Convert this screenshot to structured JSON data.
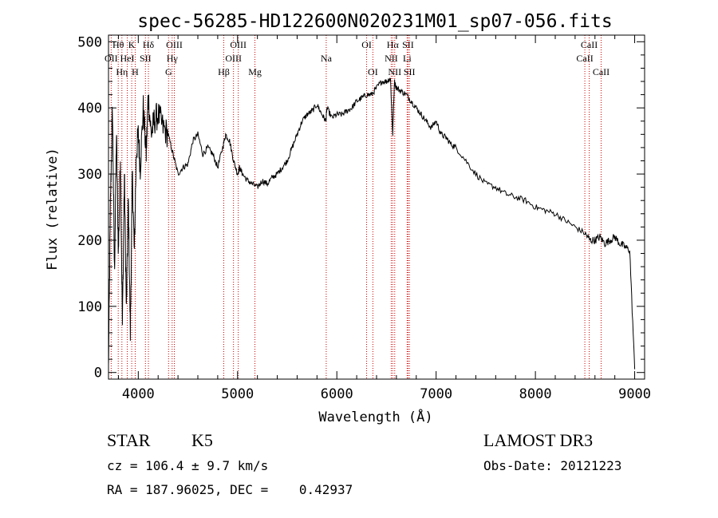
{
  "chart_data": {
    "type": "line",
    "title": "spec-56285-HD122600N020231M01_sp07-056.fits",
    "xlabel": "Wavelength (Å)",
    "ylabel": "Flux (relative)",
    "xlim": [
      3700,
      9100
    ],
    "ylim": [
      -10,
      510
    ],
    "x_ticks": [
      4000,
      5000,
      6000,
      7000,
      8000,
      9000
    ],
    "x_tick_labels": [
      "4000",
      "5000",
      "6000",
      "7000",
      "8000",
      "9000"
    ],
    "y_ticks": [
      0,
      100,
      200,
      300,
      400,
      500
    ],
    "y_tick_labels": [
      "0",
      "100",
      "200",
      "300",
      "400",
      "500"
    ],
    "line_color": "#000000",
    "marker_color": "#cc0000",
    "spectrum": {
      "x": [
        3700,
        3720,
        3740,
        3760,
        3780,
        3800,
        3820,
        3840,
        3860,
        3880,
        3900,
        3920,
        3940,
        3960,
        3980,
        4000,
        4020,
        4050,
        4080,
        4100,
        4130,
        4160,
        4200,
        4250,
        4300,
        4350,
        4400,
        4450,
        4500,
        4550,
        4600,
        4650,
        4700,
        4750,
        4800,
        4850,
        4880,
        4920,
        4960,
        5000,
        5020,
        5050,
        5100,
        5150,
        5200,
        5250,
        5300,
        5350,
        5400,
        5450,
        5500,
        5550,
        5600,
        5650,
        5700,
        5750,
        5800,
        5850,
        5890,
        5900,
        5950,
        6000,
        6050,
        6100,
        6150,
        6200,
        6250,
        6300,
        6350,
        6400,
        6450,
        6500,
        6540,
        6563,
        6580,
        6600,
        6650,
        6700,
        6750,
        6800,
        6850,
        6900,
        6950,
        7000,
        7050,
        7100,
        7150,
        7200,
        7300,
        7400,
        7500,
        7600,
        7700,
        7800,
        7900,
        8000,
        8100,
        8200,
        8300,
        8400,
        8500,
        8550,
        8600,
        8650,
        8700,
        8750,
        8800,
        8850,
        8900,
        8950,
        9000
      ],
      "y": [
        5,
        260,
        400,
        150,
        360,
        180,
        330,
        70,
        300,
        90,
        260,
        60,
        300,
        180,
        330,
        360,
        310,
        400,
        330,
        420,
        360,
        380,
        390,
        370,
        360,
        330,
        300,
        310,
        315,
        350,
        360,
        330,
        340,
        330,
        310,
        340,
        360,
        350,
        320,
        300,
        310,
        300,
        290,
        285,
        280,
        290,
        285,
        295,
        300,
        310,
        320,
        340,
        360,
        380,
        390,
        395,
        405,
        390,
        380,
        400,
        385,
        390,
        390,
        395,
        400,
        410,
        415,
        420,
        420,
        430,
        440,
        440,
        445,
        360,
        440,
        430,
        425,
        420,
        410,
        400,
        390,
        380,
        370,
        380,
        360,
        355,
        345,
        340,
        320,
        300,
        285,
        280,
        270,
        265,
        260,
        250,
        245,
        240,
        230,
        220,
        210,
        200,
        200,
        205,
        195,
        200,
        205,
        195,
        190,
        185,
        5
      ]
    },
    "spectral_lines": [
      {
        "label": "OII",
        "x": 3727,
        "row": 1
      },
      {
        "label": "Hθ",
        "x": 3798,
        "row": 0
      },
      {
        "label": "Hη",
        "x": 3835,
        "row": 2
      },
      {
        "label": "HeI",
        "x": 3889,
        "row": 1
      },
      {
        "label": "K",
        "x": 3934,
        "row": 0
      },
      {
        "label": "H",
        "x": 3969,
        "row": 2
      },
      {
        "label": "Hδ",
        "x": 4102,
        "row": 0
      },
      {
        "label": "SII",
        "x": 4072,
        "row": 1
      },
      {
        "label": "OIII",
        "x": 4363,
        "row": 0
      },
      {
        "label": "Hγ",
        "x": 4341,
        "row": 1
      },
      {
        "label": "G",
        "x": 4305,
        "row": 2
      },
      {
        "label": "Hβ",
        "x": 4861,
        "row": 2
      },
      {
        "label": "OIII",
        "x": 5007,
        "row": 0
      },
      {
        "label": "OIII",
        "x": 4959,
        "row": 1
      },
      {
        "label": "Mg",
        "x": 5175,
        "row": 2
      },
      {
        "label": "Na",
        "x": 5893,
        "row": 1
      },
      {
        "label": "OI",
        "x": 6300,
        "row": 0
      },
      {
        "label": "OI",
        "x": 6363,
        "row": 2
      },
      {
        "label": "Hα",
        "x": 6563,
        "row": 0
      },
      {
        "label": "NII",
        "x": 6548,
        "row": 1
      },
      {
        "label": "NII",
        "x": 6583,
        "row": 2
      },
      {
        "label": "SII",
        "x": 6717,
        "row": 0
      },
      {
        "label": "Li",
        "x": 6708,
        "row": 1
      },
      {
        "label": "SII",
        "x": 6731,
        "row": 2
      },
      {
        "label": "CaII",
        "x": 8542,
        "row": 0
      },
      {
        "label": "CaII",
        "x": 8498,
        "row": 1
      },
      {
        "label": "CaII",
        "x": 8662,
        "row": 2
      }
    ]
  },
  "info": {
    "star_class": "STAR",
    "subclass": "K5",
    "survey": "LAMOST DR3",
    "cz": "cz = 106.4 ± 9.7 km/s",
    "obs_date": "Obs-Date: 20121223",
    "coords": "RA = 187.96025, DEC =    0.42937"
  }
}
